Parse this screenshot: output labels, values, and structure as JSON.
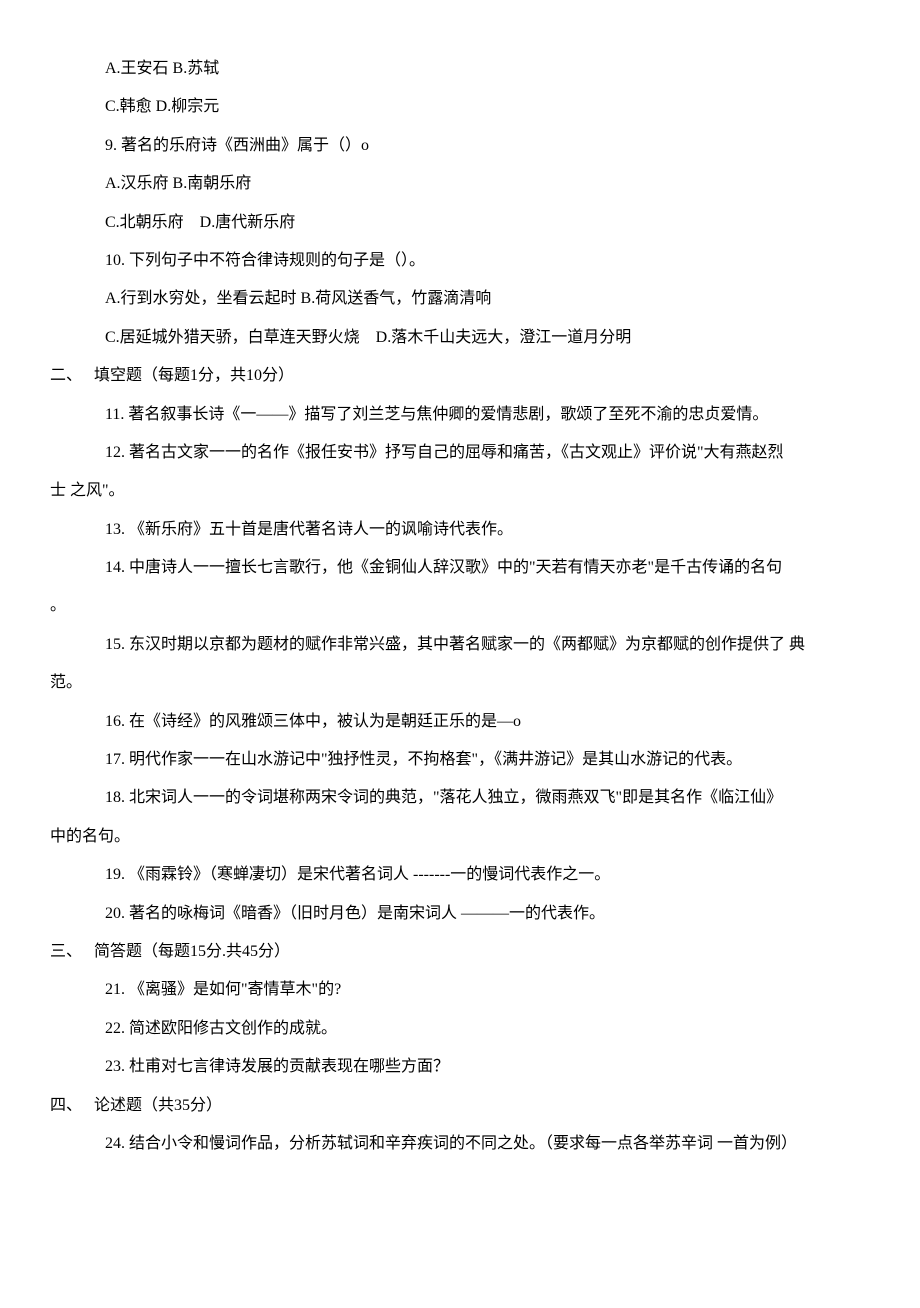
{
  "items": [
    {
      "indent": "indent-1",
      "text": "A.王安石 B.苏轼"
    },
    {
      "indent": "indent-1",
      "text": "C.韩愈 D.柳宗元"
    },
    {
      "indent": "indent-1",
      "text": "9. 著名的乐府诗《西洲曲》属于（）o"
    },
    {
      "indent": "indent-1",
      "text": "A.汉乐府 B.南朝乐府"
    },
    {
      "indent": "indent-1",
      "text": "C.北朝乐府    D.唐代新乐府"
    },
    {
      "indent": "indent-1",
      "text": "10. 下列句子中不符合律诗规则的句子是（）。"
    },
    {
      "indent": "indent-1",
      "text": "A.行到水穷处，坐看云起时 B.荷风送香气，竹露滴清响"
    },
    {
      "indent": "indent-1",
      "text": "C.居延城外猎天骄，白草连天野火烧    D.落木千山夫远大，澄江一道月分明"
    },
    {
      "indent": "indent-0",
      "text": "二、   填空题（每题1分，共10分）"
    },
    {
      "indent": "indent-1",
      "text": "11. 著名叙事长诗《一——》描写了刘兰芝与焦仲卿的爱情悲剧，歌颂了至死不渝的忠贞爱情。"
    },
    {
      "indent": "indent-1",
      "text": "12. 著名古文家一一的名作《报任安书》抒写自己的屈辱和痛苦，《古文观止》评价说\"大有燕赵烈"
    },
    {
      "indent": "indent-0",
      "text": "士 之风\"。"
    },
    {
      "indent": "indent-1",
      "text": "13. 《新乐府》五十首是唐代著名诗人一的讽喻诗代表作。"
    },
    {
      "indent": "indent-1",
      "text": "14. 中唐诗人一一擅长七言歌行，他《金铜仙人辞汉歌》中的\"天若有情天亦老\"是千古传诵的名句"
    },
    {
      "indent": "indent-0",
      "text": "。"
    },
    {
      "indent": "indent-1",
      "text": "15. 东汉时期以京都为题材的赋作非常兴盛，其中著名赋家一的《两都赋》为京都赋的创作提供了 典"
    },
    {
      "indent": "indent-0",
      "text": "范。"
    },
    {
      "indent": "indent-1",
      "text": "16. 在《诗经》的风雅颂三体中，被认为是朝廷正乐的是—o"
    },
    {
      "indent": "indent-1",
      "text": "17. 明代作家一一在山水游记中\"独抒性灵，不拘格套\"，《满井游记》是其山水游记的代表。"
    },
    {
      "indent": "indent-1",
      "text": "18. 北宋词人一一的令词堪称两宋令词的典范，\"落花人独立，微雨燕双飞\"即是其名作《临江仙》"
    },
    {
      "indent": "indent-0",
      "text": "中的名句。"
    },
    {
      "indent": "indent-1",
      "text": "19. 《雨霖铃》（寒蝉凄切）是宋代著名词人 -------一的慢词代表作之一。"
    },
    {
      "indent": "indent-1",
      "text": "20. 著名的咏梅词《暗香》（旧时月色）是南宋词人 ———一的代表作。"
    },
    {
      "indent": "indent-0",
      "text": "三、   简答题（每题15分.共45分）"
    },
    {
      "indent": "indent-1",
      "text": "21. 《离骚》是如何\"寄情草木\"的?"
    },
    {
      "indent": "indent-1",
      "text": "22. 简述欧阳修古文创作的成就。"
    },
    {
      "indent": "indent-1",
      "text": "23. 杜甫对七言律诗发展的贡献表现在哪些方面？"
    },
    {
      "indent": "indent-0",
      "text": "四、   论述题（共35分）"
    },
    {
      "indent": "indent-1",
      "text": "24. 结合小令和慢词作品，分析苏轼词和辛弃疾词的不同之处。（要求每一点各举苏辛词 一首为例）"
    }
  ]
}
